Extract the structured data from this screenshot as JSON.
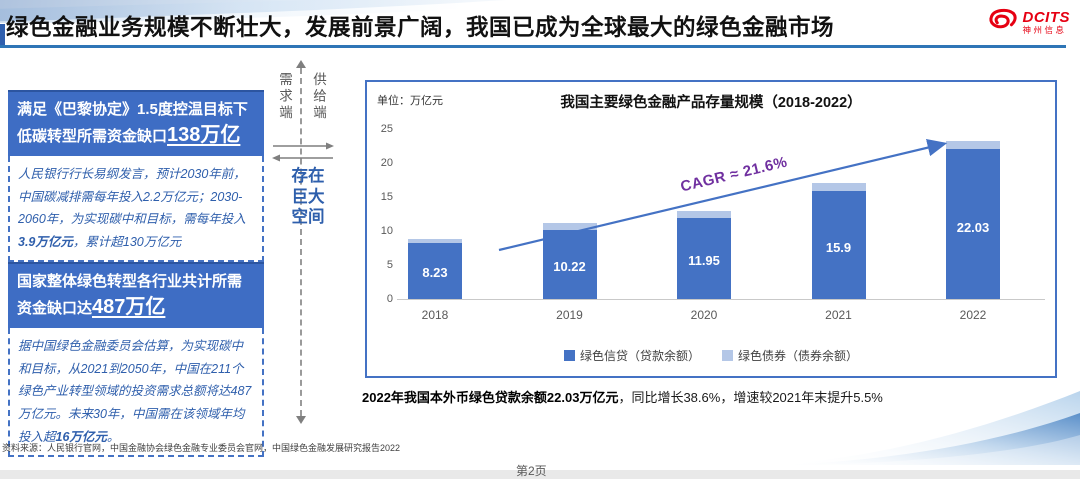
{
  "header": {
    "title": "绿色金融业务规模不断壮大，发展前景广阔，我国已成为全球最大的绿色金融市场",
    "logo": {
      "name": "DCITS",
      "subtitle": "神州信息",
      "color": "#E60012"
    }
  },
  "left_panels": [
    {
      "header_prefix": "满足《巴黎协定》1.5度控温目标下低碳转型所需资金缺口",
      "header_highlight": "138万亿",
      "body_segments": [
        {
          "text": "人民银行行长易纲发言，预计2030年前，中国碳减排需每年投入2.2万亿元；2030-2060年，为实现碳中和目标，需每年投入",
          "bold": false
        },
        {
          "text": "3.9万亿元",
          "bold": true
        },
        {
          "text": "，累计超130万亿元",
          "bold": false
        }
      ]
    },
    {
      "header_prefix": "国家整体绿色转型各行业共计所需资金缺口达",
      "header_highlight": "487万亿",
      "body_segments": [
        {
          "text": "据中国绿色金融委员会估算，为实现碳中和目标，从2021到2050年，中国在211个绿色产业转型领域的投资需求总额将达487万亿元。未来30年，中国需在该领域年均投入超",
          "bold": false
        },
        {
          "text": "16万亿元",
          "bold": true
        },
        {
          "text": "。",
          "bold": false
        }
      ]
    }
  ],
  "middle": {
    "demand_label": "需求端",
    "supply_label": "供给端",
    "gap_label": "存在巨大空间"
  },
  "chart_data": {
    "type": "bar",
    "stacked": true,
    "title": "我国主要绿色金融产品存量规模（2018-2022）",
    "unit_label": "单位：万亿元",
    "categories": [
      "2018",
      "2019",
      "2020",
      "2021",
      "2022"
    ],
    "series": [
      {
        "name": "绿色信贷（贷款余额）",
        "color": "#4472C4",
        "values": [
          8.23,
          10.22,
          11.95,
          15.9,
          22.03
        ],
        "labels": [
          "8.23",
          "10.22",
          "11.95",
          "15.9",
          "22.03"
        ]
      },
      {
        "name": "绿色债券（债券余额）",
        "color": "#B4C7E7",
        "values": [
          0.6,
          1.0,
          1.0,
          1.1,
          1.2
        ]
      }
    ],
    "ylim": [
      0,
      25
    ],
    "yticks": [
      0,
      5,
      10,
      15,
      20,
      25
    ],
    "grid": false,
    "legend_position": "bottom",
    "annotation": {
      "text": "CAGR ≈ 21.6%",
      "color": "#7030A0"
    }
  },
  "note": {
    "bold": "2022年我国本外币绿色贷款余额22.03万亿元",
    "regular": "，同比增长38.6%，增速较2021年末提升5.5%"
  },
  "footer": {
    "source": "资料来源：人民银行官网，中国金融协会绿色金融专业委员会官网，中国绿色金融发展研究报告2022",
    "page": "第2页"
  },
  "colors": {
    "bar_primary": "#4472C4",
    "bar_secondary": "#B4C7E7",
    "panel_header": "#3E6DC4",
    "title_rule": "#2E75B6",
    "cagr": "#7030A0"
  }
}
